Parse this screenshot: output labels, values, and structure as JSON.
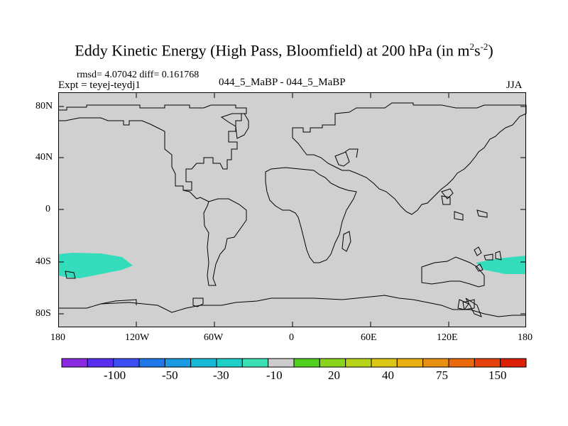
{
  "title": {
    "main": "Eddy Kinetic Energy (High Pass, Bloomfield) at 200 hPa (in m",
    "sup1": "2",
    "mid": "s",
    "sup2": "-2",
    "end": ")"
  },
  "stats": "rmsd= 4.07042 diff= 0.161768",
  "expt": "Expt = teyej-teydj1",
  "case": "044_5_MaBP - 044_5_MaBP",
  "season": "JJA",
  "map": {
    "background": "#d0d0d0",
    "anomaly_color": "#33ddbb",
    "y_ticks": [
      "80N",
      "40N",
      "0",
      "40S",
      "80S"
    ],
    "x_ticks": [
      "180",
      "120W",
      "60W",
      "0",
      "60E",
      "120E",
      "180"
    ]
  },
  "colorbar": {
    "colors": [
      "#8a2be2",
      "#5a2ef0",
      "#3b4ef5",
      "#1f78e8",
      "#1a9ae0",
      "#17b8d8",
      "#1fd0c8",
      "#3ae0b4",
      "#cccccc",
      "#50d020",
      "#8ad41c",
      "#b8d418",
      "#dcc814",
      "#e8b010",
      "#e89010",
      "#e86a0c",
      "#e4420a",
      "#dc2008"
    ],
    "labels": [
      "-100",
      "-50",
      "-30",
      "-10",
      "20",
      "40",
      "75",
      "150"
    ]
  }
}
